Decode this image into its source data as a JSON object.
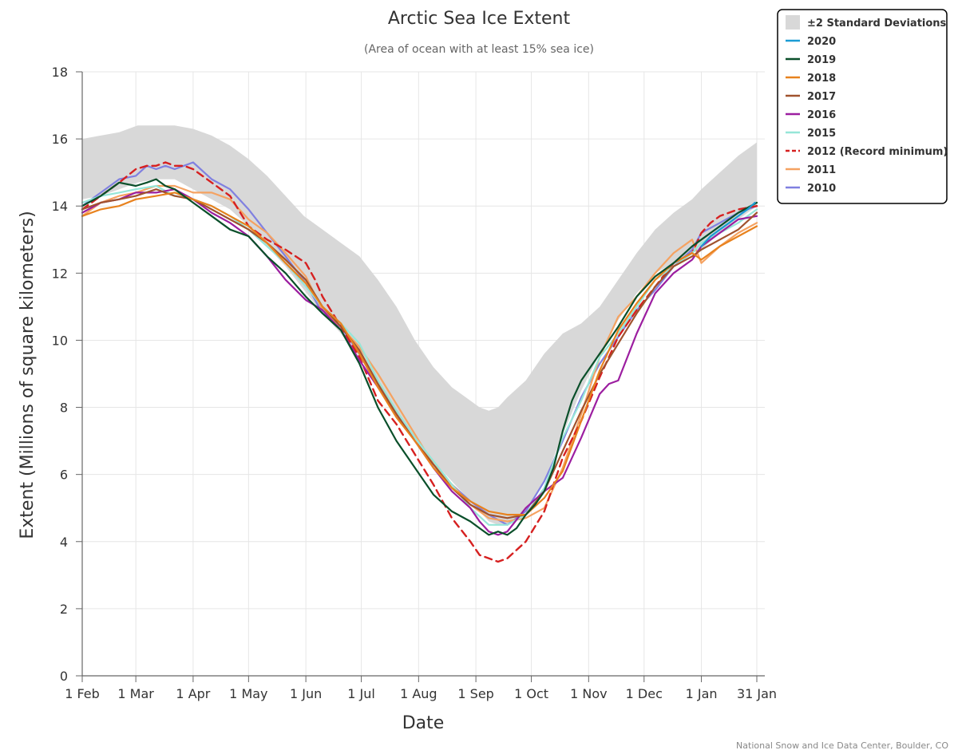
{
  "chart_data": {
    "type": "line",
    "title": "Arctic Sea Ice Extent",
    "subtitle": "(Area of ocean with at least 15% sea ice)",
    "xlabel": "Date",
    "ylabel": "Extent (Millions of square kilometers)",
    "credit": "National Snow and Ice Data Center, Boulder, CO",
    "ylim": [
      0,
      18
    ],
    "yticks": [
      0,
      2,
      4,
      6,
      8,
      10,
      12,
      14,
      16,
      18
    ],
    "xlim_days": [
      0,
      365
    ],
    "xticks": [
      {
        "label": "1 Feb",
        "day": 0
      },
      {
        "label": "1 Mar",
        "day": 29
      },
      {
        "label": "1 Apr",
        "day": 60
      },
      {
        "label": "1 May",
        "day": 90
      },
      {
        "label": "1 Jun",
        "day": 121
      },
      {
        "label": "1 Jul",
        "day": 151
      },
      {
        "label": "1 Aug",
        "day": 182
      },
      {
        "label": "1 Sep",
        "day": 213
      },
      {
        "label": "1 Oct",
        "day": 243
      },
      {
        "label": "1 Nov",
        "day": 274
      },
      {
        "label": "1 Dec",
        "day": 304
      },
      {
        "label": "1 Jan",
        "day": 335
      },
      {
        "label": "31 Jan",
        "day": 365
      }
    ],
    "band": {
      "name": "±2 Standard Deviations",
      "color": "#d8d8d8",
      "days": [
        0,
        10,
        20,
        30,
        40,
        50,
        60,
        70,
        80,
        90,
        100,
        110,
        120,
        130,
        140,
        150,
        160,
        170,
        180,
        190,
        200,
        210,
        215,
        220,
        225,
        230,
        240,
        250,
        260,
        270,
        280,
        290,
        300,
        310,
        320,
        330,
        335,
        345,
        355,
        365
      ],
      "upper": [
        16.0,
        16.1,
        16.2,
        16.4,
        16.4,
        16.4,
        16.3,
        16.1,
        15.8,
        15.4,
        14.9,
        14.3,
        13.7,
        13.3,
        12.9,
        12.5,
        11.8,
        11.0,
        10.0,
        9.2,
        8.6,
        8.2,
        8.0,
        7.9,
        8.0,
        8.3,
        8.8,
        9.6,
        10.2,
        10.5,
        11.0,
        11.8,
        12.6,
        13.3,
        13.8,
        14.2,
        14.5,
        15.0,
        15.5,
        15.9
      ],
      "lower": [
        14.2,
        14.3,
        14.5,
        14.7,
        14.8,
        14.8,
        14.5,
        14.2,
        13.9,
        13.4,
        12.8,
        12.2,
        11.5,
        10.8,
        10.2,
        9.5,
        8.7,
        7.9,
        7.1,
        6.4,
        5.8,
        5.2,
        4.9,
        4.6,
        4.5,
        4.5,
        4.9,
        5.8,
        7.2,
        8.5,
        9.6,
        10.6,
        11.4,
        12.0,
        12.3,
        12.6,
        12.7,
        13.2,
        13.6,
        14.0
      ]
    },
    "series": [
      {
        "name": "2020",
        "color": "#1b9cd4",
        "dashed": false,
        "days": [
          335,
          340,
          345,
          350,
          355,
          360,
          364
        ],
        "values": [
          12.8,
          13.1,
          13.3,
          13.5,
          13.7,
          13.9,
          14.1
        ]
      },
      {
        "name": "2019",
        "color": "#0a4f2a",
        "dashed": false,
        "days": [
          0,
          10,
          20,
          29,
          35,
          40,
          45,
          50,
          55,
          60,
          70,
          80,
          90,
          100,
          110,
          121,
          130,
          140,
          150,
          160,
          170,
          180,
          190,
          200,
          210,
          215,
          220,
          225,
          230,
          235,
          240,
          245,
          250,
          255,
          260,
          265,
          270,
          280,
          290,
          300,
          310,
          320,
          330,
          335,
          345,
          355,
          365
        ],
        "values": [
          14.0,
          14.3,
          14.7,
          14.6,
          14.7,
          14.8,
          14.6,
          14.5,
          14.3,
          14.1,
          13.7,
          13.3,
          13.1,
          12.5,
          12.0,
          11.3,
          10.8,
          10.3,
          9.3,
          8.0,
          7.0,
          6.2,
          5.4,
          4.9,
          4.6,
          4.4,
          4.2,
          4.3,
          4.2,
          4.4,
          4.8,
          5.1,
          5.5,
          6.2,
          7.3,
          8.2,
          8.8,
          9.6,
          10.4,
          11.3,
          11.9,
          12.3,
          12.8,
          13.0,
          13.4,
          13.8,
          14.1
        ]
      },
      {
        "name": "2018",
        "color": "#e8821e",
        "dashed": false,
        "days": [
          0,
          10,
          20,
          29,
          40,
          50,
          60,
          70,
          80,
          90,
          100,
          110,
          121,
          130,
          140,
          150,
          160,
          170,
          180,
          190,
          200,
          210,
          220,
          230,
          240,
          250,
          260,
          270,
          280,
          290,
          300,
          310,
          320,
          330,
          335,
          345,
          355,
          365
        ],
        "values": [
          13.7,
          13.9,
          14.0,
          14.2,
          14.3,
          14.4,
          14.2,
          14.0,
          13.7,
          13.4,
          12.9,
          12.3,
          11.7,
          11.0,
          10.5,
          9.6,
          8.6,
          7.7,
          7.0,
          6.2,
          5.6,
          5.2,
          4.9,
          4.8,
          4.8,
          5.3,
          6.1,
          7.6,
          9.1,
          10.3,
          11.1,
          11.8,
          12.3,
          12.6,
          12.4,
          12.8,
          13.1,
          13.4
        ]
      },
      {
        "name": "2017",
        "color": "#a0522d",
        "dashed": false,
        "days": [
          0,
          10,
          20,
          29,
          40,
          50,
          60,
          70,
          80,
          90,
          100,
          110,
          121,
          130,
          140,
          150,
          160,
          170,
          180,
          190,
          200,
          210,
          220,
          230,
          240,
          250,
          260,
          270,
          280,
          290,
          300,
          310,
          320,
          330,
          335,
          345,
          355,
          365
        ],
        "values": [
          13.9,
          14.1,
          14.2,
          14.3,
          14.5,
          14.3,
          14.2,
          13.9,
          13.6,
          13.3,
          12.9,
          12.4,
          11.8,
          11.0,
          10.4,
          9.7,
          8.7,
          7.8,
          7.0,
          6.3,
          5.6,
          5.1,
          4.8,
          4.7,
          4.8,
          5.5,
          6.7,
          7.9,
          9.0,
          9.9,
          10.8,
          11.6,
          12.2,
          12.5,
          12.7,
          13.0,
          13.3,
          13.8
        ]
      },
      {
        "name": "2016",
        "color": "#9c1ea0",
        "dashed": false,
        "days": [
          0,
          10,
          20,
          29,
          40,
          50,
          60,
          70,
          80,
          90,
          100,
          110,
          121,
          130,
          140,
          150,
          160,
          170,
          180,
          190,
          200,
          210,
          215,
          220,
          225,
          230,
          240,
          250,
          260,
          270,
          280,
          285,
          290,
          300,
          310,
          320,
          330,
          335,
          345,
          355,
          365
        ],
        "values": [
          13.8,
          14.1,
          14.2,
          14.4,
          14.4,
          14.5,
          14.2,
          13.8,
          13.5,
          13.1,
          12.5,
          11.8,
          11.2,
          10.9,
          10.3,
          9.4,
          8.6,
          7.8,
          7.0,
          6.2,
          5.5,
          5.0,
          4.6,
          4.3,
          4.2,
          4.3,
          5.0,
          5.5,
          5.9,
          7.1,
          8.4,
          8.7,
          8.8,
          10.2,
          11.4,
          12.0,
          12.4,
          12.8,
          13.2,
          13.6,
          13.7
        ]
      },
      {
        "name": "2015",
        "color": "#96e6d8",
        "dashed": false,
        "days": [
          0,
          10,
          20,
          29,
          40,
          50,
          60,
          70,
          80,
          90,
          100,
          110,
          121,
          130,
          140,
          150,
          160,
          170,
          180,
          190,
          200,
          210,
          220,
          230,
          240,
          250,
          260,
          270,
          280,
          290,
          300,
          310,
          320,
          330,
          335,
          345,
          355,
          365
        ],
        "values": [
          14.1,
          14.3,
          14.4,
          14.5,
          14.6,
          14.3,
          14.2,
          14.0,
          13.7,
          13.3,
          12.8,
          12.3,
          11.6,
          11.0,
          10.5,
          9.9,
          8.8,
          7.9,
          7.1,
          6.4,
          5.7,
          5.0,
          4.5,
          4.5,
          4.8,
          5.6,
          7.1,
          8.2,
          9.5,
          10.2,
          11.0,
          11.8,
          12.2,
          12.6,
          12.9,
          13.2,
          13.5,
          13.9
        ]
      },
      {
        "name": "2012 (Record minimum)",
        "color": "#d62020",
        "dashed": true,
        "days": [
          0,
          10,
          20,
          29,
          35,
          40,
          45,
          50,
          55,
          60,
          70,
          80,
          90,
          100,
          110,
          121,
          126,
          130,
          140,
          150,
          160,
          170,
          180,
          190,
          200,
          210,
          215,
          220,
          225,
          230,
          240,
          250,
          260,
          270,
          280,
          290,
          300,
          310,
          320,
          330,
          335,
          340,
          345,
          355,
          365
        ],
        "values": [
          13.9,
          14.3,
          14.7,
          15.1,
          15.2,
          15.2,
          15.3,
          15.2,
          15.2,
          15.1,
          14.7,
          14.3,
          13.4,
          13.0,
          12.7,
          12.3,
          11.8,
          11.3,
          10.4,
          9.5,
          8.2,
          7.5,
          6.6,
          5.7,
          4.7,
          4.0,
          3.6,
          3.5,
          3.4,
          3.5,
          4.0,
          4.9,
          6.5,
          7.6,
          8.9,
          10.1,
          10.9,
          11.6,
          12.3,
          12.6,
          13.2,
          13.5,
          13.7,
          13.9,
          14.0
        ]
      },
      {
        "name": "2011",
        "color": "#f5a261",
        "dashed": false,
        "days": [
          0,
          10,
          20,
          29,
          40,
          50,
          60,
          70,
          80,
          90,
          100,
          110,
          121,
          130,
          140,
          150,
          160,
          170,
          180,
          190,
          200,
          210,
          220,
          230,
          240,
          250,
          260,
          270,
          280,
          290,
          300,
          310,
          320,
          330,
          335,
          345,
          355,
          365
        ],
        "values": [
          13.7,
          14.1,
          14.3,
          14.4,
          14.6,
          14.6,
          14.4,
          14.4,
          14.2,
          13.6,
          13.2,
          12.6,
          11.9,
          10.9,
          10.4,
          9.8,
          9.0,
          8.1,
          7.2,
          6.3,
          5.7,
          5.1,
          4.7,
          4.6,
          4.7,
          5.0,
          6.2,
          7.8,
          9.5,
          10.7,
          11.3,
          12.0,
          12.6,
          13.0,
          12.3,
          12.8,
          13.2,
          13.5
        ]
      },
      {
        "name": "2010",
        "color": "#8080e0",
        "dashed": false,
        "days": [
          0,
          10,
          20,
          29,
          35,
          40,
          45,
          50,
          55,
          60,
          70,
          80,
          90,
          100,
          110,
          121,
          130,
          140,
          150,
          160,
          170,
          180,
          190,
          200,
          210,
          220,
          230,
          240,
          250,
          260,
          270,
          280,
          290,
          300,
          310,
          320,
          330,
          335,
          345,
          355,
          365
        ],
        "values": [
          14.0,
          14.4,
          14.8,
          14.9,
          15.2,
          15.1,
          15.2,
          15.1,
          15.2,
          15.3,
          14.8,
          14.5,
          13.9,
          13.2,
          12.5,
          11.7,
          10.8,
          10.4,
          9.6,
          8.6,
          7.8,
          7.0,
          6.3,
          5.7,
          5.2,
          4.8,
          4.5,
          4.9,
          5.8,
          7.0,
          8.3,
          9.3,
          10.1,
          10.9,
          11.5,
          12.2,
          12.7,
          13.2,
          13.5,
          13.8,
          14.0
        ]
      }
    ]
  }
}
